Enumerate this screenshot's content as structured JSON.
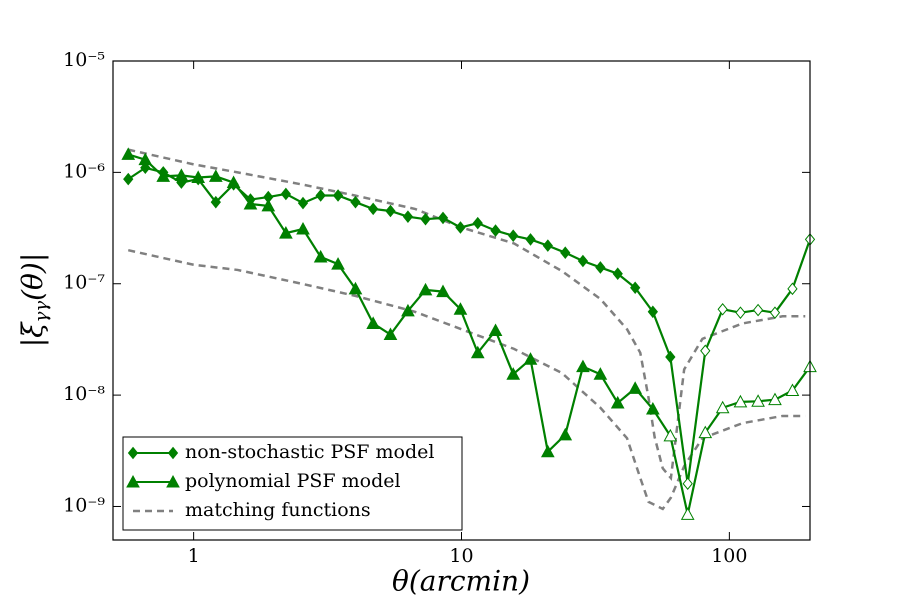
{
  "chart_data": {
    "type": "line",
    "xlabel": "θ(arcmin)",
    "ylabel_main": "|ξ",
    "ylabel_sub": "γγ",
    "ylabel_end": "(θ)|",
    "xscale": "log",
    "yscale": "log",
    "xlim": [
      0.5,
      200
    ],
    "ylim": [
      5e-10,
      1e-05
    ],
    "xticks": [
      1,
      10,
      100
    ],
    "yticks": [
      {
        "value": 1e-09,
        "label": "10⁻⁹"
      },
      {
        "value": 1e-08,
        "label": "10⁻⁸"
      },
      {
        "value": 1e-07,
        "label": "10⁻⁷"
      },
      {
        "value": 1e-06,
        "label": "10⁻⁶"
      },
      {
        "value": 1e-05,
        "label": "10⁻⁵"
      }
    ],
    "legend": "lower left",
    "x": [
      0.57,
      0.66,
      0.77,
      0.9,
      1.04,
      1.21,
      1.41,
      1.63,
      1.9,
      2.21,
      2.56,
      2.98,
      3.46,
      4.02,
      4.68,
      5.43,
      6.31,
      7.34,
      8.53,
      9.91,
      11.5,
      13.4,
      15.6,
      18.1,
      21.0,
      24.4,
      28.4,
      33.0,
      38.3,
      44.5,
      51.8,
      60.2,
      69.9,
      81.3,
      94.4,
      110,
      128,
      148,
      172,
      200
    ],
    "series": [
      {
        "name": "non-stochastic PSF model",
        "color": "#008000",
        "marker": "diamond",
        "values": [
          8.7e-07,
          1.1e-06,
          1e-06,
          8.1e-07,
          8.7e-07,
          5.4e-07,
          7.8e-07,
          5.7e-07,
          6e-07,
          6.4e-07,
          5.3e-07,
          6.2e-07,
          6.2e-07,
          5.4e-07,
          4.7e-07,
          4.5e-07,
          4e-07,
          3.8e-07,
          3.9e-07,
          3.2e-07,
          3.5e-07,
          3e-07,
          2.7e-07,
          2.5e-07,
          2.2e-07,
          1.9e-07,
          1.6e-07,
          1.4e-07,
          1.23e-07,
          9.2e-08,
          5.6e-08,
          2.2e-08,
          1.6e-09,
          2.5e-08,
          5.9e-08,
          5.5e-08,
          5.8e-08,
          5.5e-08,
          9e-08,
          2.5e-07
        ],
        "filled": [
          true,
          true,
          true,
          true,
          true,
          true,
          true,
          true,
          true,
          true,
          true,
          true,
          true,
          true,
          true,
          true,
          true,
          true,
          true,
          true,
          true,
          true,
          true,
          true,
          true,
          true,
          true,
          true,
          true,
          true,
          true,
          true,
          false,
          false,
          false,
          false,
          false,
          false,
          false,
          false
        ]
      },
      {
        "name": "polynomial PSF model",
        "color": "#008000",
        "marker": "triangle",
        "values": [
          1.45e-06,
          1.3e-06,
          9.2e-07,
          9.4e-07,
          9e-07,
          9.2e-07,
          8.1e-07,
          5.2e-07,
          5e-07,
          2.85e-07,
          3.1e-07,
          1.74e-07,
          1.5e-07,
          9e-08,
          4.4e-08,
          3.5e-08,
          5.7e-08,
          8.8e-08,
          8.5e-08,
          5.9e-08,
          2.4e-08,
          3.8e-08,
          1.54e-08,
          2.1e-08,
          3.1e-09,
          4.4e-09,
          1.8e-08,
          1.54e-08,
          8.5e-09,
          1.15e-08,
          7.5e-09,
          4.3e-09,
          8.5e-10,
          4.6e-09,
          7.7e-09,
          8.7e-09,
          8.8e-09,
          9.1e-09,
          1.1e-08,
          1.8e-08
        ],
        "filled": [
          true,
          true,
          true,
          true,
          true,
          true,
          true,
          true,
          true,
          true,
          true,
          true,
          true,
          true,
          true,
          true,
          true,
          true,
          true,
          true,
          true,
          true,
          true,
          true,
          true,
          true,
          true,
          true,
          true,
          true,
          true,
          false,
          false,
          false,
          false,
          false,
          false,
          false,
          false,
          false
        ]
      }
    ],
    "matching_functions": {
      "name": "matching functions",
      "color": "#808080",
      "curves": [
        {
          "x": [
            0.57,
            1,
            1.46,
            2.53,
            4.0,
            6.7,
            10,
            15.7,
            23.7,
            33,
            41.5,
            46.5,
            49.9,
            52.6,
            56.4,
            60.5,
            67.8,
            79.3,
            112,
            158,
            192
          ],
          "values": [
            1.6e-06,
            1.18e-06,
            1e-06,
            7.8e-07,
            6.2e-07,
            4.7e-07,
            3.2e-07,
            2.3e-07,
            1.3e-07,
            7.3e-08,
            3.9e-08,
            2.4e-08,
            9.5e-09,
            4.2e-09,
            2.2e-09,
            1.8e-09,
            1.7e-08,
            3.2e-08,
            4.4e-08,
            5.1e-08,
            5.1e-08
          ]
        },
        {
          "x": [
            0.57,
            1,
            1.46,
            2.53,
            4.0,
            6.7,
            10,
            15.7,
            23.7,
            33,
            41.5,
            46.5,
            49.9,
            56.4,
            60.5,
            67.8,
            79.3,
            112,
            158,
            192
          ],
          "values": [
            2e-07,
            1.48e-07,
            1.33e-07,
            1e-07,
            7.8e-08,
            5.6e-08,
            3.9e-08,
            2.6e-08,
            1.58e-08,
            7.7e-09,
            4.1e-09,
            1.8e-09,
            1.1e-09,
            9.5e-10,
            1.2e-09,
            2.3e-09,
            4.1e-09,
            5.6e-09,
            6.5e-09,
            6.5e-09
          ]
        }
      ]
    }
  }
}
